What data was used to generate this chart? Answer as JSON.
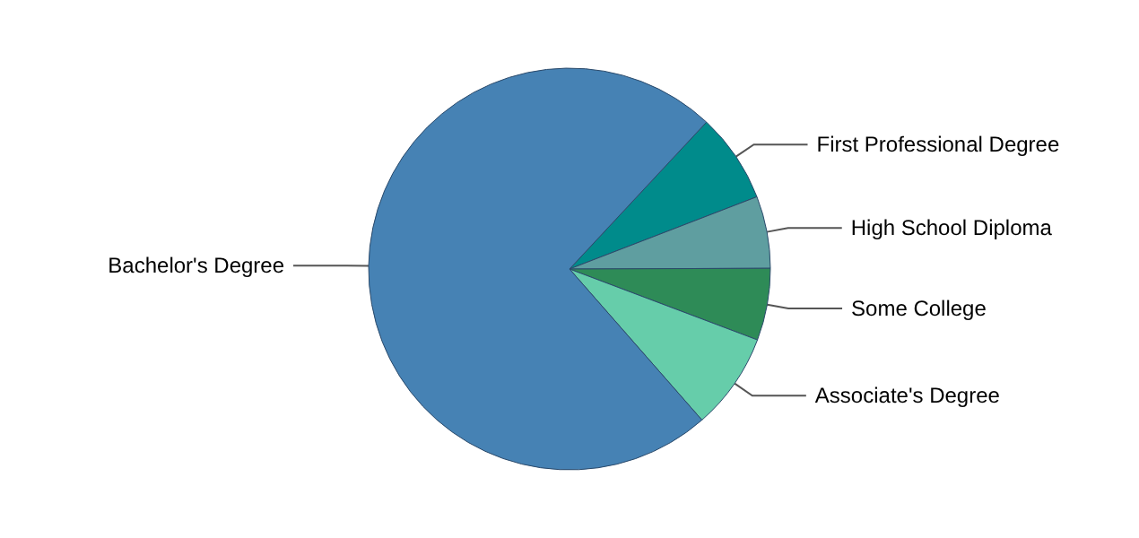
{
  "chart_data": {
    "type": "pie",
    "categories": [
      "First Professional Degree",
      "High School Diploma",
      "Some College",
      "Associate's Degree",
      "Bachelor's Degree"
    ],
    "values": [
      7.2,
      5.8,
      5.8,
      7.8,
      73.4
    ],
    "colors": [
      "#008b8b",
      "#5f9ea0",
      "#2e8b57",
      "#66cdaa",
      "#4682b4"
    ]
  }
}
